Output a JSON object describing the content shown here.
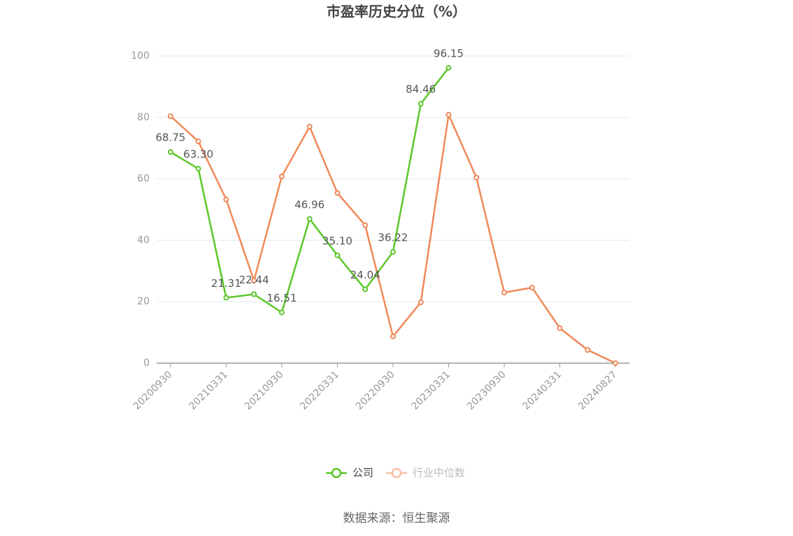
{
  "chart_data": {
    "type": "line",
    "title": "市盈率历史分位（%）",
    "source": "数据来源：恒生聚源",
    "categories": [
      "20200930",
      null,
      "20210331",
      null,
      "20210930",
      null,
      "20220331",
      null,
      "20220930",
      null,
      "20230331",
      null,
      "20230930",
      null,
      "20240331",
      null,
      "20240827"
    ],
    "series": [
      {
        "name": "公司",
        "color": "#5cc72a",
        "values": [
          68.75,
          63.3,
          21.31,
          22.44,
          16.51,
          46.96,
          35.1,
          24.04,
          36.22,
          84.46,
          96.15,
          null,
          null,
          null,
          null,
          null,
          null
        ],
        "value_labels": [
          "68.75",
          "63.30",
          "21.31",
          "22.44",
          "16.51",
          "46.96",
          "35.10",
          "24.04",
          "36.22",
          "84.46",
          "96.15",
          null,
          null,
          null,
          null,
          null,
          null
        ]
      },
      {
        "name": "行业中位数",
        "color": "#f0895a",
        "values": [
          80.4,
          72.2,
          53.3,
          26.9,
          60.8,
          77.0,
          55.4,
          44.9,
          8.7,
          19.8,
          80.9,
          60.4,
          23.0,
          24.6,
          11.4,
          4.3,
          0
        ]
      }
    ],
    "ylim": [
      0,
      100
    ],
    "yticks": [
      0,
      20,
      40,
      60,
      80,
      100
    ],
    "grid": true
  }
}
